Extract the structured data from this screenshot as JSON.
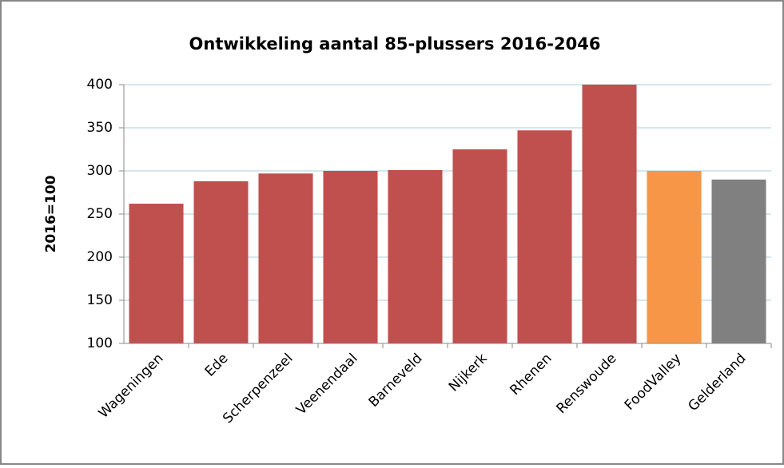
{
  "chart_data": {
    "type": "bar",
    "title": "Ontwikkeling aantal 85-plussers 2016-2046",
    "y_label": "2016=100",
    "categories": [
      "Wageningen",
      "Ede",
      "Scherpenzeel",
      "Veenendaal",
      "Barneveld",
      "Nijkerk",
      "Rhenen",
      "Renswoude",
      "FoodValley",
      "Gelderland"
    ],
    "values": [
      262,
      288,
      297,
      300,
      301,
      325,
      347,
      400,
      300,
      290
    ],
    "colors": [
      "#c0504d",
      "#c0504d",
      "#c0504d",
      "#c0504d",
      "#c0504d",
      "#c0504d",
      "#c0504d",
      "#c0504d",
      "#f79646",
      "#808080"
    ],
    "ylim": [
      100,
      400
    ],
    "yticks": [
      100,
      150,
      200,
      250,
      300,
      350,
      400
    ],
    "grid": true
  }
}
